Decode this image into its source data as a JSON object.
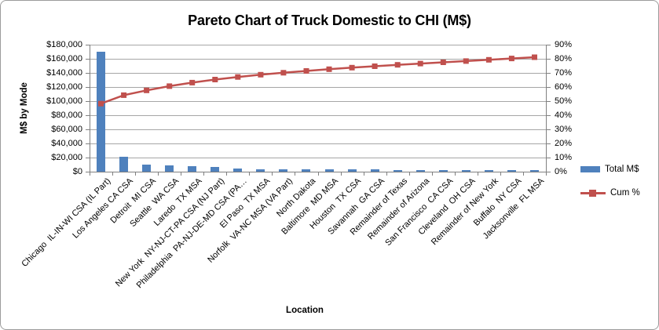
{
  "colors": {
    "bar": "#4F81BD",
    "line": "#C0504D",
    "gridline": "#A6A6A6",
    "axis": "#808080",
    "card_border": "#9B9B9B",
    "text": "#000000",
    "background": "#FFFFFF"
  },
  "chart_data": {
    "type": "bar",
    "subtype": "pareto (bar + cumulative line combo)",
    "title": "Pareto Chart of Truck Domestic to CHI (M$)",
    "xlabel": "Location",
    "ylabel": "M$ by Mode",
    "legend_position": "right",
    "grid": "horizontal gridlines on",
    "x_tick_rotation_deg": 45,
    "categories": [
      "Chicago  IL-IN-WI CSA (IL Part)",
      "Los Angeles CA CSA",
      "Detroit  MI CSA",
      "Seattle  WA CSA",
      "Laredo  TX MSA",
      "New York  NY-NJ-CT-PA CSA (NJ Part)",
      "Philadelphia  PA-NJ-DE-MD CSA (PA…",
      "El Paso  TX MSA",
      "Norfolk  VA-NC MSA (VA Part)",
      "North Dakota",
      "Baltimore  MD MSA",
      "Houston  TX CSA",
      "Savannah  GA CSA",
      "Remainder of Texas",
      "Remainder of Arizona",
      "San Francisco  CA CSA",
      "Cleveland  OH CSA",
      "Remainder of New York",
      "Buffalo  NY CSA",
      "Jacksonville  FL MSA"
    ],
    "series": [
      {
        "name": "Total M$",
        "type": "bar",
        "axis": "left",
        "color": "#4F81BD",
        "values": [
          170000,
          21000,
          10500,
          9200,
          8100,
          6900,
          4300,
          3700,
          3400,
          3200,
          3000,
          2900,
          2800,
          2700,
          2600,
          2500,
          2400,
          2300,
          2200,
          1800
        ]
      },
      {
        "name": "Cum %",
        "type": "line",
        "marker": "square",
        "axis": "right",
        "color": "#C0504D",
        "values": [
          48.2,
          54.2,
          57.6,
          60.6,
          63.1,
          65.3,
          67.1,
          68.7,
          70.1,
          71.4,
          72.6,
          73.7,
          74.7,
          75.7,
          76.6,
          77.5,
          78.4,
          79.3,
          80.2,
          81.1
        ]
      }
    ],
    "y_left": {
      "ticks": [
        "$0",
        "$20,000",
        "$40,000",
        "$60,000",
        "$80,000",
        "$100,000",
        "$120,000",
        "$140,000",
        "$160,000",
        "$180,000"
      ],
      "min": 0,
      "max": 180000,
      "step": 20000
    },
    "y_right": {
      "ticks": [
        "0%",
        "10%",
        "20%",
        "30%",
        "40%",
        "50%",
        "60%",
        "70%",
        "80%",
        "90%"
      ],
      "min": 0,
      "max": 90,
      "step": 10
    }
  }
}
